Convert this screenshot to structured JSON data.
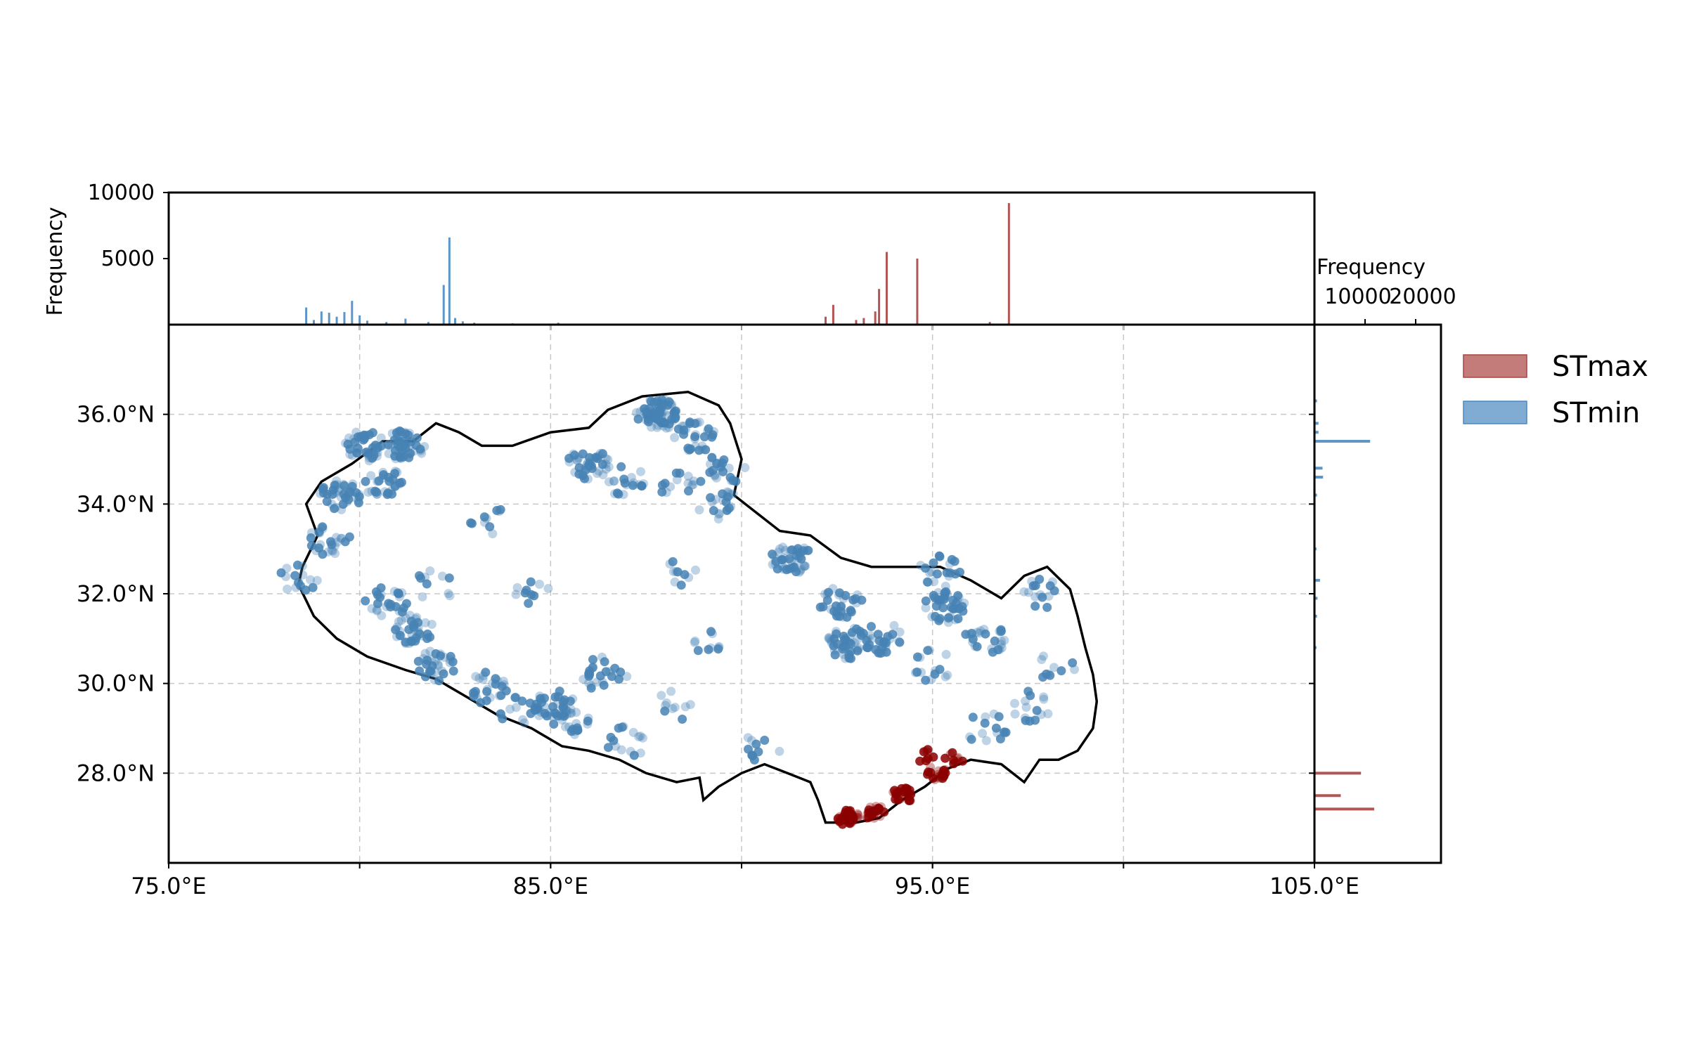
{
  "chart_data": {
    "type": "scatter",
    "colors": {
      "stmax": "#8b0000",
      "stmin": "#4682b4",
      "stmax_hist": "#a94442",
      "stmin_hist": "#4a89c0",
      "outline": "#000000"
    },
    "map": {
      "xlim": [
        75,
        105
      ],
      "ylim": [
        26,
        38
      ],
      "x_ticks": [
        {
          "v": 75,
          "label": "75.0°E"
        },
        {
          "v": 85,
          "label": "85.0°E"
        },
        {
          "v": 95,
          "label": "95.0°E"
        },
        {
          "v": 105,
          "label": "105.0°E"
        }
      ],
      "x_grid": [
        80,
        85,
        90,
        95,
        100
      ],
      "y_ticks": [
        {
          "v": 28,
          "label": "28.0°N"
        },
        {
          "v": 30,
          "label": "30.0°N"
        },
        {
          "v": 32,
          "label": "32.0°N"
        },
        {
          "v": 34,
          "label": "34.0°N"
        },
        {
          "v": 36,
          "label": "36.0°N"
        }
      ],
      "grid": true,
      "outline": [
        [
          78.5,
          32.6
        ],
        [
          78.4,
          32.2
        ],
        [
          78.8,
          31.5
        ],
        [
          79.4,
          31.0
        ],
        [
          80.2,
          30.6
        ],
        [
          81.2,
          30.3
        ],
        [
          82.0,
          30.1
        ],
        [
          82.8,
          29.7
        ],
        [
          83.6,
          29.3
        ],
        [
          84.5,
          29.0
        ],
        [
          85.3,
          28.6
        ],
        [
          86.0,
          28.5
        ],
        [
          86.8,
          28.3
        ],
        [
          87.5,
          28.0
        ],
        [
          88.3,
          27.8
        ],
        [
          88.9,
          27.9
        ],
        [
          89.0,
          27.4
        ],
        [
          89.4,
          27.7
        ],
        [
          90.0,
          28.0
        ],
        [
          90.6,
          28.2
        ],
        [
          91.2,
          28.0
        ],
        [
          91.8,
          27.8
        ],
        [
          92.0,
          27.4
        ],
        [
          92.2,
          26.9
        ],
        [
          93.0,
          26.9
        ],
        [
          93.6,
          27.0
        ],
        [
          94.2,
          27.4
        ],
        [
          94.8,
          27.7
        ],
        [
          95.4,
          28.1
        ],
        [
          96.0,
          28.3
        ],
        [
          96.8,
          28.2
        ],
        [
          97.4,
          27.8
        ],
        [
          97.8,
          28.3
        ],
        [
          98.3,
          28.3
        ],
        [
          98.8,
          28.5
        ],
        [
          99.2,
          29.0
        ],
        [
          99.3,
          29.6
        ],
        [
          99.2,
          30.2
        ],
        [
          99.0,
          30.8
        ],
        [
          98.8,
          31.5
        ],
        [
          98.6,
          32.1
        ],
        [
          98.0,
          32.6
        ],
        [
          97.4,
          32.4
        ],
        [
          96.8,
          31.9
        ],
        [
          96.0,
          32.3
        ],
        [
          95.2,
          32.6
        ],
        [
          94.4,
          32.6
        ],
        [
          93.4,
          32.6
        ],
        [
          92.6,
          32.8
        ],
        [
          91.8,
          33.3
        ],
        [
          91.0,
          33.4
        ],
        [
          90.4,
          33.8
        ],
        [
          89.8,
          34.2
        ],
        [
          90.0,
          35.0
        ],
        [
          89.7,
          35.8
        ],
        [
          89.4,
          36.2
        ],
        [
          88.6,
          36.5
        ],
        [
          87.4,
          36.4
        ],
        [
          86.5,
          36.1
        ],
        [
          86.0,
          35.7
        ],
        [
          85.0,
          35.6
        ],
        [
          84.0,
          35.3
        ],
        [
          83.2,
          35.3
        ],
        [
          82.6,
          35.6
        ],
        [
          82.0,
          35.8
        ],
        [
          81.4,
          35.4
        ],
        [
          80.6,
          35.4
        ],
        [
          79.8,
          34.9
        ],
        [
          79.0,
          34.5
        ],
        [
          78.6,
          34.0
        ],
        [
          78.9,
          33.3
        ],
        [
          78.5,
          32.6
        ]
      ],
      "stmin_clusters": [
        [
          80.1,
          35.3,
          40
        ],
        [
          81.2,
          35.3,
          45
        ],
        [
          80.6,
          34.5,
          30
        ],
        [
          79.5,
          34.2,
          40
        ],
        [
          79.2,
          33.2,
          25
        ],
        [
          78.4,
          32.3,
          15
        ],
        [
          80.7,
          31.8,
          25
        ],
        [
          81.4,
          31.2,
          35
        ],
        [
          82.0,
          30.4,
          30
        ],
        [
          83.3,
          29.9,
          25
        ],
        [
          85.1,
          29.5,
          40
        ],
        [
          84.2,
          29.4,
          15
        ],
        [
          87.0,
          28.7,
          15
        ],
        [
          87.8,
          36.0,
          70
        ],
        [
          88.8,
          35.5,
          30
        ],
        [
          89.6,
          34.8,
          20
        ],
        [
          89.4,
          34.0,
          20
        ],
        [
          86.0,
          34.9,
          40
        ],
        [
          87.0,
          34.5,
          20
        ],
        [
          88.4,
          34.4,
          15
        ],
        [
          86.5,
          30.3,
          15
        ],
        [
          89.0,
          31.0,
          10
        ],
        [
          88.4,
          32.5,
          10
        ],
        [
          91.3,
          32.8,
          45
        ],
        [
          92.6,
          31.8,
          30
        ],
        [
          92.8,
          30.9,
          45
        ],
        [
          93.7,
          31.0,
          25
        ],
        [
          95.3,
          31.7,
          40
        ],
        [
          95.0,
          30.4,
          15
        ],
        [
          96.4,
          31.0,
          25
        ],
        [
          97.6,
          29.5,
          15
        ],
        [
          98.2,
          30.4,
          10
        ],
        [
          97.9,
          32.0,
          15
        ],
        [
          96.4,
          29.0,
          15
        ],
        [
          95.2,
          32.5,
          20
        ],
        [
          90.6,
          28.6,
          10
        ],
        [
          88.3,
          29.5,
          10
        ],
        [
          84.5,
          32.0,
          10
        ],
        [
          82.0,
          32.2,
          10
        ],
        [
          83.4,
          33.6,
          10
        ],
        [
          85.6,
          29.2,
          20
        ],
        [
          86.3,
          30.2,
          10
        ]
      ],
      "stmax_clusters": [
        [
          92.8,
          27.0,
          35
        ],
        [
          93.5,
          27.1,
          25
        ],
        [
          94.2,
          27.5,
          25
        ],
        [
          95.1,
          28.0,
          20
        ],
        [
          95.6,
          28.3,
          10
        ],
        [
          94.8,
          28.4,
          8
        ]
      ]
    },
    "top_hist": {
      "ylabel": "Frequency",
      "ylim": [
        0,
        10000
      ],
      "y_ticks": [
        {
          "v": 5000,
          "label": "5000"
        },
        {
          "v": 10000,
          "label": "10000"
        }
      ],
      "stmin_bins": [
        [
          78.6,
          1300
        ],
        [
          78.8,
          350
        ],
        [
          79.0,
          1000
        ],
        [
          79.2,
          900
        ],
        [
          79.4,
          600
        ],
        [
          79.6,
          950
        ],
        [
          79.8,
          1800
        ],
        [
          80.0,
          700
        ],
        [
          80.2,
          300
        ],
        [
          80.7,
          200
        ],
        [
          81.2,
          450
        ],
        [
          81.8,
          200
        ],
        [
          82.2,
          3000
        ],
        [
          82.35,
          6600
        ],
        [
          82.5,
          500
        ],
        [
          82.7,
          250
        ],
        [
          83.0,
          150
        ],
        [
          84.0,
          100
        ],
        [
          84.6,
          80
        ],
        [
          85.2,
          150
        ],
        [
          87.0,
          60
        ],
        [
          90.0,
          60
        ]
      ],
      "stmax_bins": [
        [
          92.2,
          600
        ],
        [
          92.4,
          1500
        ],
        [
          93.0,
          350
        ],
        [
          93.2,
          500
        ],
        [
          93.5,
          1000
        ],
        [
          93.6,
          2700
        ],
        [
          93.8,
          5500
        ],
        [
          94.6,
          5000
        ],
        [
          96.5,
          200
        ],
        [
          97.0,
          9200
        ]
      ]
    },
    "right_hist": {
      "xlabel": "Frequency",
      "xlim": [
        0,
        25000
      ],
      "x_ticks": [
        {
          "v": 10000,
          "label": "10000"
        },
        {
          "v": 20000,
          "label": "20000"
        }
      ],
      "stmin_bins": [
        [
          36.3,
          500
        ],
        [
          35.8,
          800
        ],
        [
          35.6,
          800
        ],
        [
          35.4,
          11000
        ],
        [
          34.8,
          1600
        ],
        [
          34.6,
          1700
        ],
        [
          34.2,
          500
        ],
        [
          33.0,
          400
        ],
        [
          32.3,
          1100
        ],
        [
          31.9,
          600
        ],
        [
          31.5,
          500
        ],
        [
          30.8,
          400
        ]
      ],
      "stmax_bins": [
        [
          28.0,
          9200
        ],
        [
          27.5,
          5200
        ],
        [
          27.2,
          11800
        ]
      ]
    },
    "legend": [
      {
        "key": "stmax",
        "label": "STmax"
      },
      {
        "key": "stmin",
        "label": "STmin"
      }
    ],
    "legend_position": "right"
  }
}
